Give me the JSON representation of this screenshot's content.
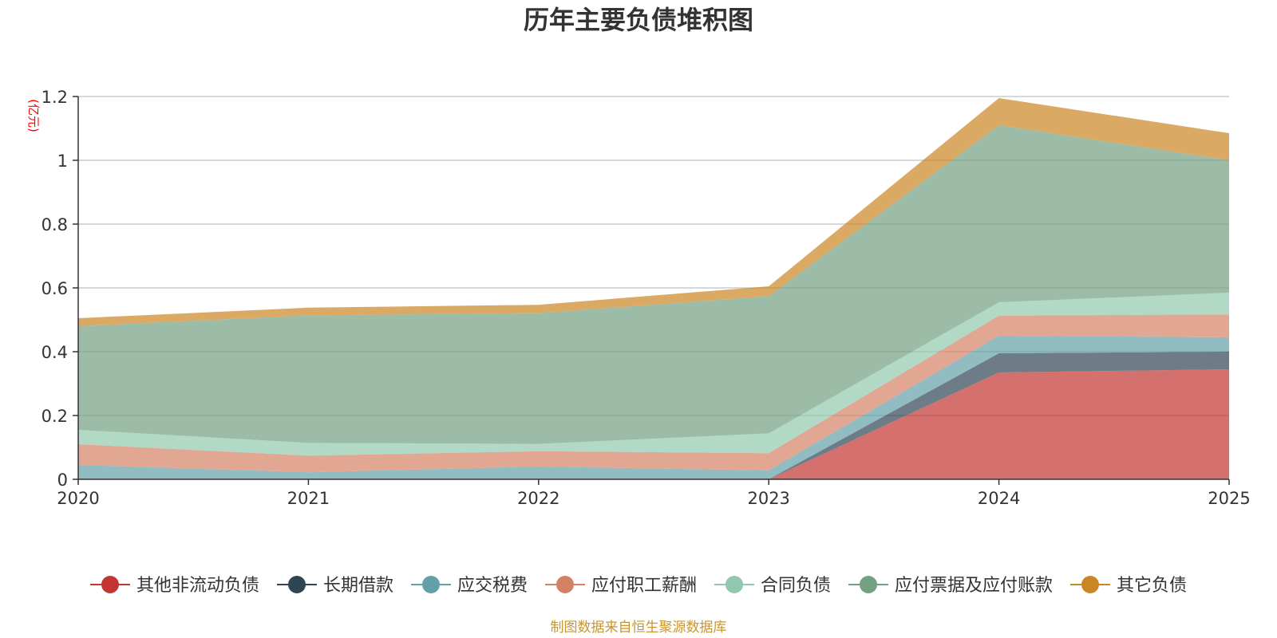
{
  "chart_data": {
    "type": "area",
    "stacked": true,
    "title": "历年主要负债堆积图",
    "unit_label": "(亿元)",
    "x": [
      "2020",
      "2021",
      "2022",
      "2023",
      "2024",
      "2025"
    ],
    "ylim": [
      0,
      1.2
    ],
    "yticks": [
      0,
      0.2,
      0.4,
      0.6,
      0.8,
      1,
      1.2
    ],
    "ytick_labels": [
      "0",
      "0.2",
      "0.4",
      "0.6",
      "0.8",
      "1",
      "1.2"
    ],
    "grid": true,
    "legend_position": "bottom",
    "series": [
      {
        "name": "其他非流动负债",
        "color": "#c23531",
        "values": [
          0,
          0,
          0,
          0,
          0.335,
          0.345
        ]
      },
      {
        "name": "长期借款",
        "color": "#2f4554",
        "values": [
          0,
          0,
          0,
          0,
          0.06,
          0.055
        ]
      },
      {
        "name": "应交税费",
        "color": "#61a0a8",
        "values": [
          0.045,
          0.022,
          0.04,
          0.028,
          0.055,
          0.045
        ]
      },
      {
        "name": "应付职工薪酬",
        "color": "#d48265",
        "values": [
          0.065,
          0.052,
          0.048,
          0.054,
          0.063,
          0.072
        ]
      },
      {
        "name": "合同负债",
        "color": "#91c7ae",
        "values": [
          0.045,
          0.04,
          0.023,
          0.062,
          0.042,
          0.068
        ]
      },
      {
        "name": "应付票据及应付账款",
        "color": "#749f83",
        "values": [
          0.325,
          0.4,
          0.41,
          0.43,
          0.555,
          0.415
        ]
      },
      {
        "name": "其它负债",
        "color": "#ca8622",
        "values": [
          0.025,
          0.024,
          0.026,
          0.031,
          0.085,
          0.085
        ]
      }
    ]
  },
  "footer": {
    "source": "制图数据来自恒生聚源数据库"
  }
}
